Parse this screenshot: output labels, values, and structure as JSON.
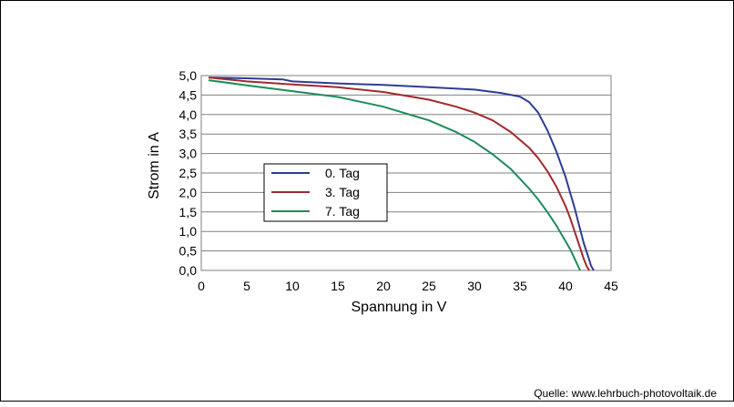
{
  "chart_data": {
    "type": "line",
    "title": "",
    "xlabel": "Spannung  in V",
    "ylabel": "Strom in A",
    "xlim": [
      0,
      45
    ],
    "ylim": [
      0,
      5
    ],
    "x_ticks": [
      "0",
      "5",
      "10",
      "15",
      "20",
      "25",
      "30",
      "35",
      "40",
      "45"
    ],
    "y_ticks": [
      "0,0",
      "0,5",
      "1,0",
      "1,5",
      "2,0",
      "2,5",
      "3,0",
      "3,5",
      "4,0",
      "4,5",
      "5,0"
    ],
    "grid": "horizontal",
    "legend_position": "center-left",
    "series": [
      {
        "name": "0. Tag",
        "color": "#2E3C94",
        "x": [
          0.8,
          5,
          9,
          10,
          15,
          20,
          25,
          30,
          33,
          35,
          36,
          37,
          38,
          39,
          40,
          41,
          41.5,
          42,
          42.5,
          42.8,
          43.1
        ],
        "y": [
          4.95,
          4.93,
          4.9,
          4.85,
          4.8,
          4.76,
          4.7,
          4.64,
          4.55,
          4.46,
          4.32,
          4.05,
          3.6,
          3.05,
          2.4,
          1.6,
          1.15,
          0.7,
          0.35,
          0.12,
          0
        ]
      },
      {
        "name": "3. Tag",
        "color": "#A02A2E",
        "x": [
          0.8,
          5,
          10,
          15,
          20,
          25,
          28,
          30,
          32,
          34,
          36,
          37,
          38,
          39,
          40,
          40.5,
          41,
          41.5,
          42,
          42.3,
          42.6
        ],
        "y": [
          4.95,
          4.85,
          4.77,
          4.7,
          4.58,
          4.38,
          4.2,
          4.05,
          3.85,
          3.55,
          3.15,
          2.88,
          2.55,
          2.15,
          1.65,
          1.35,
          1.0,
          0.65,
          0.3,
          0.12,
          0
        ]
      },
      {
        "name": "7. Tag",
        "color": "#1E8C5A",
        "x": [
          0.8,
          5,
          10,
          15,
          20,
          25,
          28,
          30,
          32,
          34,
          36,
          37,
          38,
          39,
          40,
          40.5,
          41,
          41.3,
          41.6
        ],
        "y": [
          4.88,
          4.75,
          4.6,
          4.45,
          4.2,
          3.85,
          3.55,
          3.3,
          2.98,
          2.6,
          2.1,
          1.82,
          1.5,
          1.15,
          0.75,
          0.55,
          0.3,
          0.15,
          0
        ]
      }
    ]
  },
  "footer": {
    "source": "Quelle: www.lehrbuch-photovoltaik.de"
  }
}
